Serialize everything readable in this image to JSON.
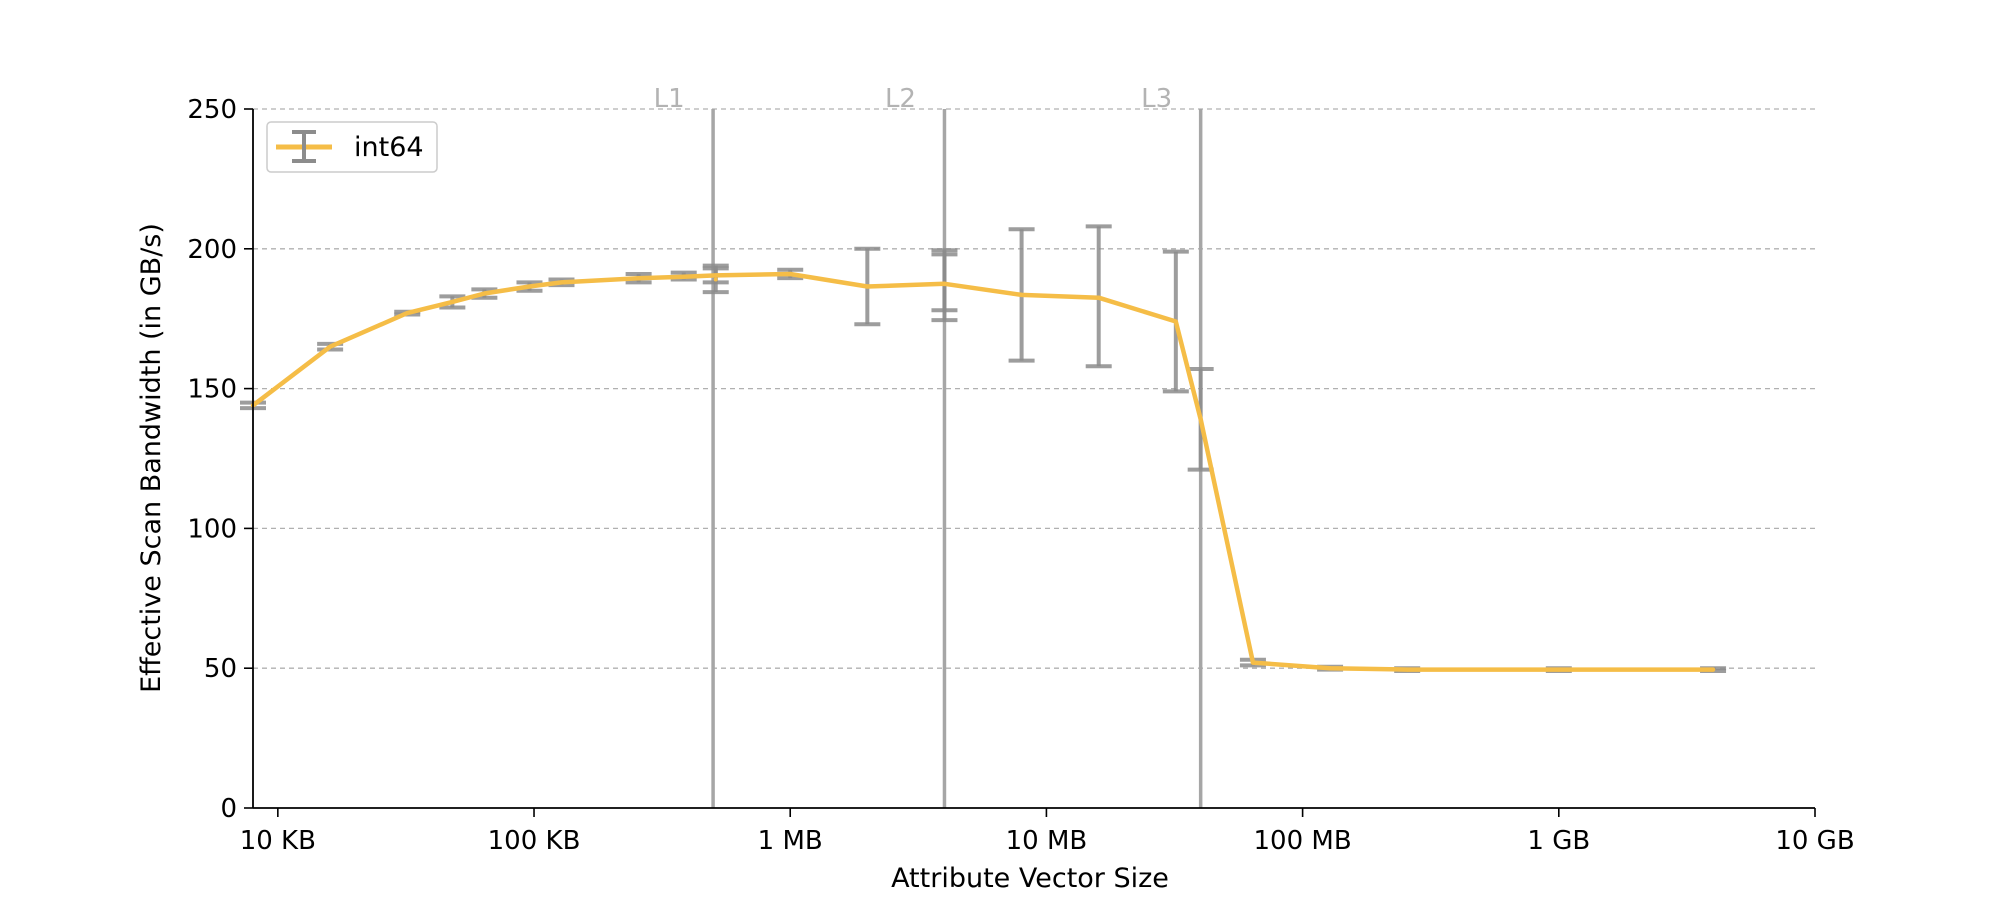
{
  "chart_data": {
    "type": "line",
    "title": "",
    "xlabel": "Attribute Vector Size",
    "ylabel": "Effective Scan Bandwidth (in GB/s)",
    "x_scale": "log",
    "x_unit": "bytes",
    "xlim": [
      8000,
      10000000000
    ],
    "ylim": [
      0,
      250
    ],
    "grid": "y-dashed",
    "x_ticks": [
      {
        "value": 10000,
        "label": "10 KB"
      },
      {
        "value": 100000,
        "label": "100 KB"
      },
      {
        "value": 1000000,
        "label": "1 MB"
      },
      {
        "value": 10000000,
        "label": "10 MB"
      },
      {
        "value": 100000000,
        "label": "100 MB"
      },
      {
        "value": 1000000000,
        "label": "1 GB"
      },
      {
        "value": 10000000000,
        "label": "10 GB"
      }
    ],
    "y_ticks": [
      {
        "value": 0,
        "label": "0"
      },
      {
        "value": 50,
        "label": "50"
      },
      {
        "value": 100,
        "label": "100"
      },
      {
        "value": 150,
        "label": "150"
      },
      {
        "value": 200,
        "label": "200"
      },
      {
        "value": 250,
        "label": "250"
      }
    ],
    "cache_lines": [
      {
        "label": "L1",
        "x": 500000
      },
      {
        "label": "L2",
        "x": 4000000
      },
      {
        "label": "L3",
        "x": 40000000
      }
    ],
    "legend_position": "top-left",
    "series": [
      {
        "name": "int64",
        "color": "#f5bd47",
        "error_color": "#8c8c8c",
        "points": [
          {
            "x": 8000,
            "y": 144,
            "lo": 143,
            "hi": 145
          },
          {
            "x": 16000,
            "y": 165,
            "lo": 164,
            "hi": 166
          },
          {
            "x": 32000,
            "y": 177,
            "lo": 176.5,
            "hi": 177.5
          },
          {
            "x": 48000,
            "y": 181,
            "lo": 179,
            "hi": 183
          },
          {
            "x": 64000,
            "y": 184,
            "lo": 182.5,
            "hi": 185.5
          },
          {
            "x": 96000,
            "y": 186.5,
            "lo": 185,
            "hi": 188
          },
          {
            "x": 128000,
            "y": 188,
            "lo": 187,
            "hi": 189
          },
          {
            "x": 256000,
            "y": 189.5,
            "lo": 188,
            "hi": 191
          },
          {
            "x": 384000,
            "y": 190,
            "lo": 189,
            "hi": 191.5
          },
          {
            "x": 512000,
            "y": 190.5,
            "lo": 188,
            "hi": 193
          },
          {
            "x": 512000,
            "y": 189,
            "lo": 184.5,
            "hi": 194
          },
          {
            "x": 1000000,
            "y": 191,
            "lo": 189.5,
            "hi": 192.5
          },
          {
            "x": 2000000,
            "y": 186.5,
            "lo": 173,
            "hi": 200
          },
          {
            "x": 4000000,
            "y": 187.5,
            "lo": 174.5,
            "hi": 199.5
          },
          {
            "x": 4000000,
            "y": 187.5,
            "lo": 178,
            "hi": 198
          },
          {
            "x": 8000000,
            "y": 183.5,
            "lo": 160,
            "hi": 207
          },
          {
            "x": 16000000,
            "y": 182.5,
            "lo": 158,
            "hi": 208
          },
          {
            "x": 32000000,
            "y": 174,
            "lo": 149,
            "hi": 199
          },
          {
            "x": 40000000,
            "y": 139,
            "lo": 121,
            "hi": 157
          },
          {
            "x": 64000000,
            "y": 52,
            "lo": 51,
            "hi": 53
          },
          {
            "x": 128000000,
            "y": 50,
            "lo": 49.5,
            "hi": 50.5
          },
          {
            "x": 256000000,
            "y": 49.5,
            "lo": 49,
            "hi": 50
          },
          {
            "x": 1000000000,
            "y": 49.5,
            "lo": 49,
            "hi": 50
          },
          {
            "x": 4000000000,
            "y": 49.5,
            "lo": 49,
            "hi": 50
          }
        ]
      }
    ]
  }
}
